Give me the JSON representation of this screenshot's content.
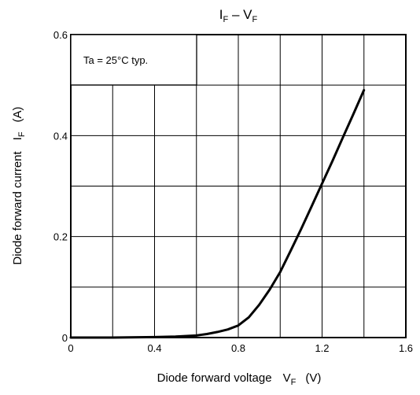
{
  "chart_data": {
    "type": "line",
    "title": {
      "main": "I",
      "sub1": "F",
      "mid": " – V",
      "sub2": "F"
    },
    "xlabel": {
      "text": "Diode forward voltage",
      "symbol": "V",
      "sub": "F",
      "unit": "(V)"
    },
    "ylabel": {
      "text": "Diode forward current",
      "symbol": "I",
      "sub": "F",
      "unit": "(A)"
    },
    "annotation": "Ta = 25°C typ.",
    "xlim": [
      0,
      1.6
    ],
    "ylim": [
      0,
      0.6
    ],
    "x_ticks": [
      0,
      0.4,
      0.8,
      1.2,
      1.6
    ],
    "x_tick_labels": [
      "0",
      "0.4",
      "0.8",
      "1.2",
      "1.6"
    ],
    "y_ticks": [
      0,
      0.2,
      0.4,
      0.6
    ],
    "y_tick_labels": [
      "0",
      "0.2",
      "0.4",
      "0.6"
    ],
    "x_grid_step": 0.2,
    "y_grid_step": 0.1,
    "grid": true,
    "series": [
      {
        "x": [
          0,
          0.2,
          0.4,
          0.5,
          0.6,
          0.65,
          0.7,
          0.75,
          0.8,
          0.85,
          0.9,
          0.95,
          1.0,
          1.05,
          1.1,
          1.15,
          1.2,
          1.25,
          1.3,
          1.35,
          1.4
        ],
        "y": [
          0,
          0,
          0.001,
          0.002,
          0.004,
          0.007,
          0.011,
          0.016,
          0.024,
          0.04,
          0.065,
          0.095,
          0.13,
          0.172,
          0.215,
          0.26,
          0.305,
          0.35,
          0.397,
          0.443,
          0.49
        ]
      }
    ]
  }
}
